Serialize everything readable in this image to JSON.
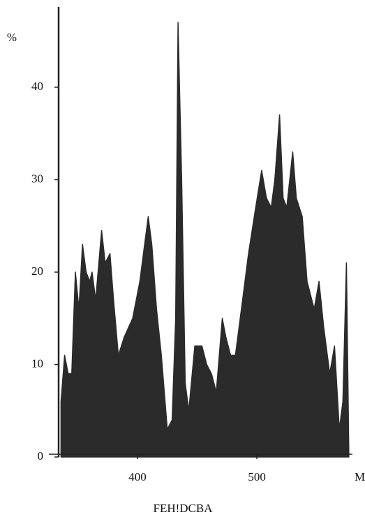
{
  "chart_data": {
    "type": "area",
    "y_unit": "%",
    "x_unit": "Ma",
    "x_label": "FEH!DCBA",
    "x": [
      336,
      339,
      342,
      345,
      348,
      351,
      354,
      357,
      360,
      362,
      365,
      370,
      373,
      377,
      380,
      384,
      389,
      396,
      402,
      406,
      409,
      412,
      416,
      420,
      425,
      429,
      432,
      434,
      437,
      440,
      443,
      448,
      454,
      458,
      462,
      466,
      471,
      474,
      478,
      482,
      488,
      493,
      499,
      504,
      508,
      512,
      515,
      519,
      522,
      525,
      530,
      533,
      538,
      542,
      548,
      552,
      556,
      561,
      565,
      569,
      572,
      575,
      577
    ],
    "values": [
      6,
      11,
      9,
      9,
      20,
      16,
      23,
      20,
      19,
      20,
      17,
      24.5,
      21,
      22,
      17,
      11,
      13,
      15,
      19,
      23,
      26,
      23,
      16,
      11,
      3,
      4,
      15,
      47,
      30,
      8,
      5,
      12,
      12,
      10,
      9,
      7,
      15,
      13,
      11,
      11,
      17,
      22,
      27,
      31,
      28,
      27,
      30,
      37,
      28,
      27,
      33,
      28,
      26,
      19,
      16,
      19,
      14,
      9,
      12,
      3,
      6,
      21,
      0
    ],
    "color": "#2b2b2b",
    "xlim": [
      334,
      580
    ],
    "xticks": [
      400,
      500
    ],
    "ylim": [
      0,
      48
    ],
    "yticks": [
      0,
      10,
      20,
      30,
      40
    ]
  }
}
